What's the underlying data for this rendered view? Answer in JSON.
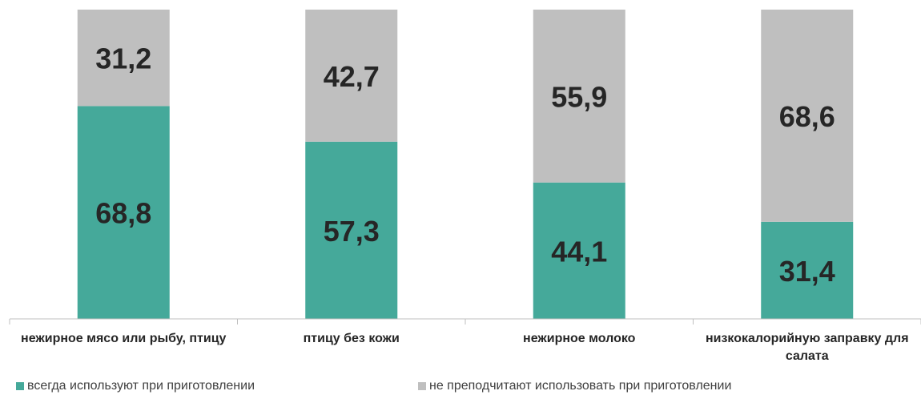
{
  "chart_data": {
    "type": "stacked_bar",
    "categories": [
      "нежирное мясо или рыбу, птицу",
      "птицу без кожи",
      "нежирное молоко",
      "низкокалорийную заправку для салата"
    ],
    "series": [
      {
        "name": "всегда используют при приготовлении",
        "color": "#45a99a",
        "values": [
          68.8,
          57.3,
          44.1,
          31.4
        ],
        "value_labels": [
          "68,8",
          "57,3",
          "44,1",
          "31,4"
        ]
      },
      {
        "name": "не преподчитают использовать при приготовлении",
        "color": "#bfbfbf",
        "values": [
          31.2,
          42.7,
          55.9,
          68.6
        ],
        "value_labels": [
          "31,2",
          "42,7",
          "55,9",
          "68,6"
        ]
      }
    ],
    "ylim": [
      0,
      100
    ],
    "legend": "bottom"
  }
}
